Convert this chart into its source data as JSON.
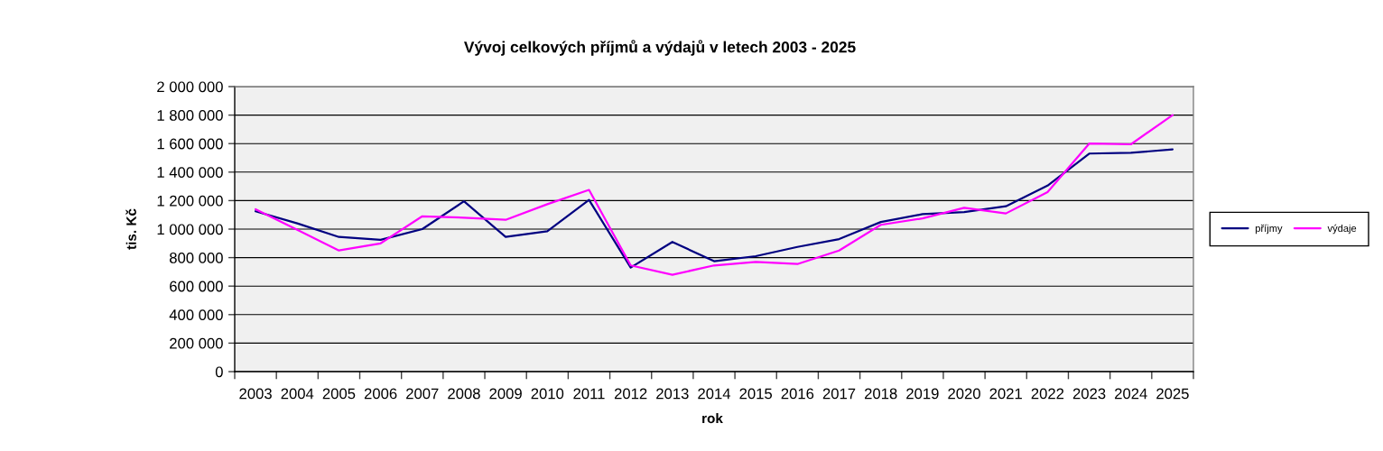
{
  "chart_data": {
    "type": "line",
    "title": "Vývoj celkových příjmů a výdajů v letech 2003 - 2025",
    "xlabel": "rok",
    "ylabel": "tis. Kč",
    "categories": [
      "2003",
      "2004",
      "2005",
      "2006",
      "2007",
      "2008",
      "2009",
      "2010",
      "2011",
      "2012",
      "2013",
      "2014",
      "2015",
      "2016",
      "2017",
      "2018",
      "2019",
      "2020",
      "2021",
      "2022",
      "2023",
      "2024",
      "2025"
    ],
    "series": [
      {
        "name": "příjmy",
        "color": "#000080",
        "values": [
          1125000,
          1040000,
          945000,
          925000,
          1000000,
          1195000,
          945000,
          985000,
          1205000,
          730000,
          910000,
          775000,
          810000,
          875000,
          930000,
          1050000,
          1105000,
          1120000,
          1160000,
          1305000,
          1530000,
          1535000,
          1560000
        ]
      },
      {
        "name": "výdaje",
        "color": "#ff00ff",
        "values": [
          1140000,
          995000,
          850000,
          900000,
          1090000,
          1080000,
          1065000,
          1175000,
          1275000,
          745000,
          680000,
          745000,
          770000,
          755000,
          850000,
          1030000,
          1075000,
          1150000,
          1110000,
          1260000,
          1600000,
          1595000,
          1800000
        ]
      }
    ],
    "ylim": [
      0,
      2000000
    ],
    "yticks": [
      0,
      {
        "value": 200000,
        "label": "200 000"
      },
      {
        "value": 400000,
        "label": "400 000"
      },
      {
        "value": 600000,
        "label": "600 000"
      },
      {
        "value": 800000,
        "label": "800 000"
      },
      {
        "value": 1000000,
        "label": "1 000 000"
      },
      {
        "value": 1200000,
        "label": "1 200 000"
      },
      {
        "value": 1400000,
        "label": "1 400 000"
      },
      {
        "value": 1600000,
        "label": "1 600 000"
      },
      {
        "value": 1800000,
        "label": "1 800 000"
      },
      {
        "value": 2000000,
        "label": "2 000 000"
      }
    ],
    "grid": "y",
    "legend": "right",
    "line_style": "solid"
  }
}
